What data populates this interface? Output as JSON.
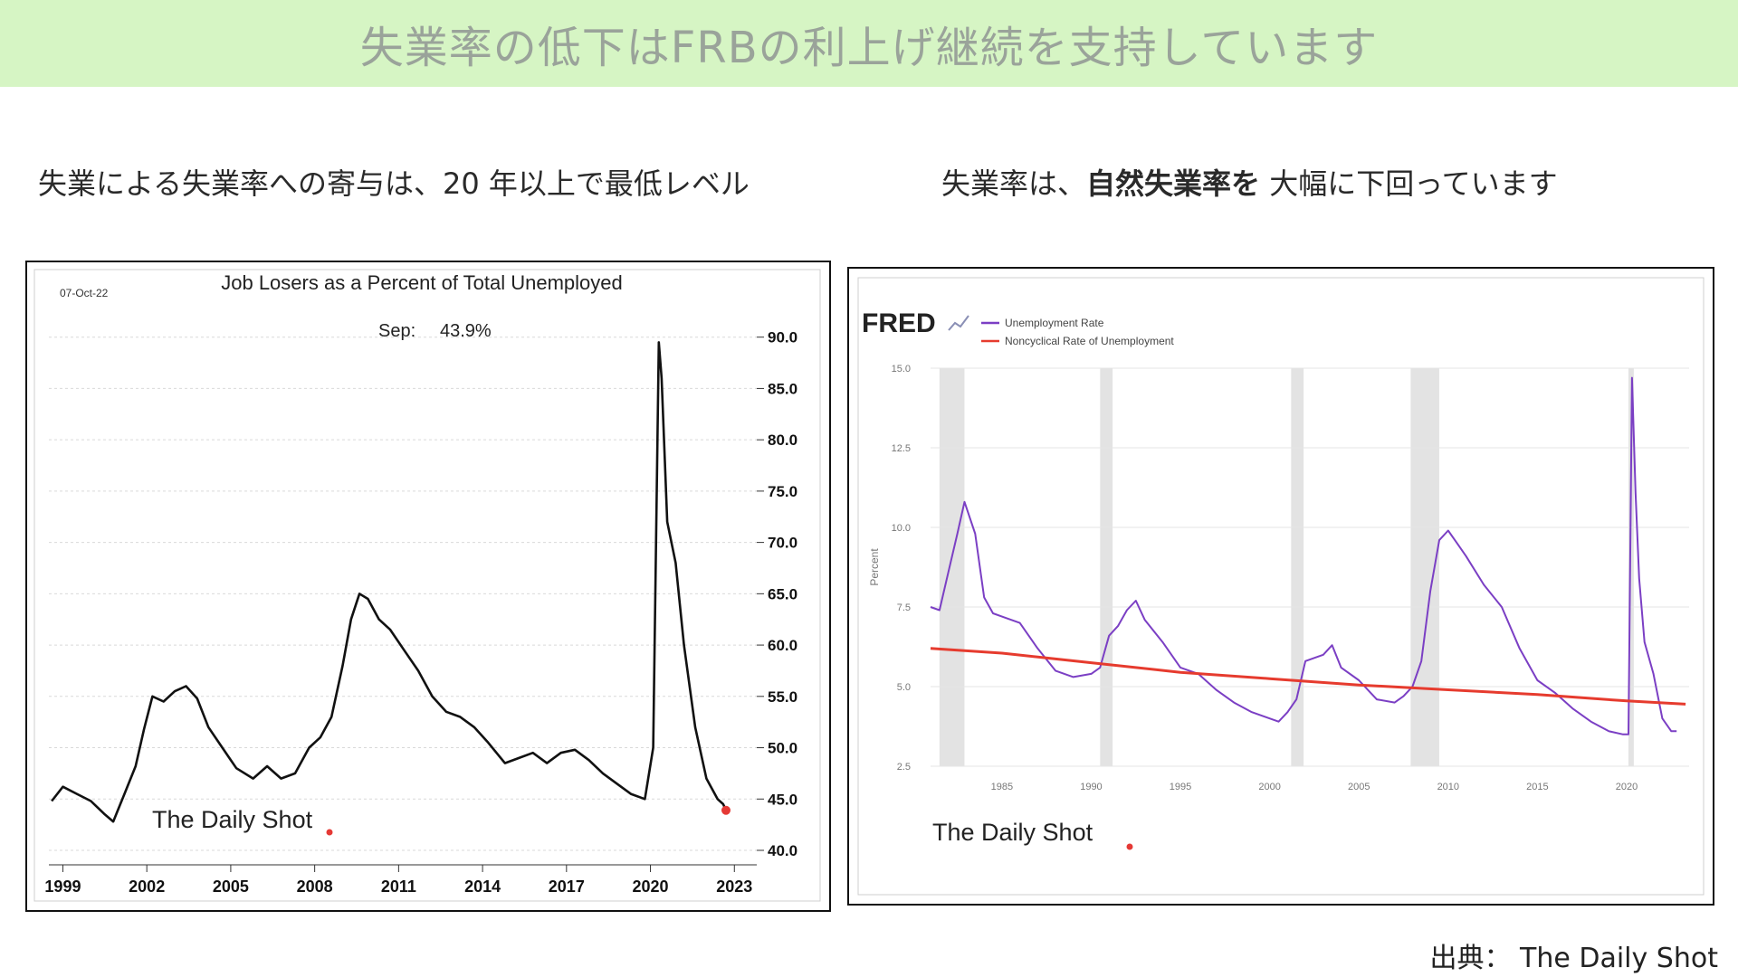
{
  "banner": {
    "title": "失業率の低下はFRBの利上げ継続を支持しています",
    "color": "#d6f5c4"
  },
  "left_subtitle": "失業による失業率への寄与は、20 年以上で最低レベル",
  "right_subtitle": {
    "part1": "失業率は、",
    "part2": "自然失業率を",
    "part3": " 大幅に下回っています"
  },
  "source": "出典： The Daily Shot",
  "chart_data": [
    {
      "type": "line",
      "date_label": "07-Oct-22",
      "title": "Job Losers as a Percent of Total Unemployed",
      "annotation": {
        "label": "Sep:",
        "value": "43.9%"
      },
      "watermark": "The Daily Shot",
      "xlim": [
        1998.5,
        2023.8
      ],
      "ylim": [
        40,
        92
      ],
      "xticks": [
        1999,
        2002,
        2005,
        2008,
        2011,
        2014,
        2017,
        2020,
        2023
      ],
      "xtick_labels": [
        "1999",
        "2002",
        "2005",
        "2008",
        "2011",
        "2014",
        "2017",
        "2020",
        "2023"
      ],
      "yticks": [
        40,
        45,
        50,
        55,
        60,
        65,
        70,
        75,
        80,
        85,
        90
      ],
      "ytick_labels": [
        "40.0",
        "45.0",
        "50.0",
        "55.0",
        "60.0",
        "65.0",
        "70.0",
        "75.0",
        "80.0",
        "85.0",
        "90.0"
      ],
      "y_axis_side": "right",
      "grid": true,
      "last_point": {
        "x": 2022.7,
        "y": 43.9,
        "color": "#e53935"
      },
      "series": [
        {
          "color": "#111111",
          "x": [
            1998.6,
            1999.0,
            1999.5,
            2000.0,
            2000.5,
            2000.8,
            2001.2,
            2001.6,
            2001.9,
            2002.2,
            2002.6,
            2003.0,
            2003.4,
            2003.8,
            2004.2,
            2004.7,
            2005.2,
            2005.8,
            2006.3,
            2006.8,
            2007.3,
            2007.8,
            2008.2,
            2008.6,
            2009.0,
            2009.3,
            2009.6,
            2009.9,
            2010.3,
            2010.7,
            2011.2,
            2011.7,
            2012.2,
            2012.7,
            2013.2,
            2013.7,
            2014.2,
            2014.8,
            2015.3,
            2015.8,
            2016.3,
            2016.8,
            2017.3,
            2017.8,
            2018.3,
            2018.8,
            2019.3,
            2019.8,
            2020.1,
            2020.3,
            2020.4,
            2020.6,
            2020.9,
            2021.2,
            2021.6,
            2022.0,
            2022.4,
            2022.6,
            2022.7
          ],
          "y": [
            44.8,
            46.2,
            45.5,
            44.8,
            43.5,
            42.8,
            45.5,
            48.2,
            51.8,
            55.0,
            54.5,
            55.5,
            56.0,
            54.8,
            52.0,
            50.0,
            48.0,
            47.0,
            48.2,
            47.0,
            47.5,
            50.0,
            51.0,
            53.0,
            58.0,
            62.5,
            65.0,
            64.5,
            62.5,
            61.5,
            59.5,
            57.5,
            55.0,
            53.5,
            53.0,
            52.0,
            50.5,
            48.5,
            49.0,
            49.5,
            48.5,
            49.5,
            49.8,
            48.8,
            47.5,
            46.5,
            45.5,
            45.0,
            50.0,
            89.5,
            86.0,
            72.0,
            68.0,
            60.0,
            52.0,
            47.0,
            45.0,
            44.5,
            43.9
          ]
        }
      ]
    },
    {
      "type": "line",
      "logo": "FRED",
      "ylabel": "Percent",
      "watermark": "The Daily Shot",
      "xlim": [
        1981.0,
        2023.5
      ],
      "ylim": [
        2.5,
        15.0
      ],
      "xticks": [
        1985,
        1990,
        1995,
        2000,
        2005,
        2010,
        2015,
        2020
      ],
      "xtick_labels": [
        "1985",
        "1990",
        "1995",
        "2000",
        "2005",
        "2010",
        "2015",
        "2020"
      ],
      "yticks": [
        2.5,
        5.0,
        7.5,
        10.0,
        12.5,
        15.0
      ],
      "ytick_labels": [
        "2.5",
        "5.0",
        "7.5",
        "10.0",
        "12.5",
        "15.0"
      ],
      "legend_position": "top-left",
      "grid": true,
      "recessions": [
        [
          1981.5,
          1982.9
        ],
        [
          1990.5,
          1991.2
        ],
        [
          2001.2,
          2001.9
        ],
        [
          2007.9,
          2009.5
        ],
        [
          2020.1,
          2020.4
        ]
      ],
      "series": [
        {
          "name": "Unemployment Rate",
          "color": "#7b3fc4",
          "x": [
            1981.0,
            1981.5,
            1982.0,
            1982.5,
            1982.9,
            1983.5,
            1984.0,
            1984.5,
            1985.0,
            1986.0,
            1987.0,
            1988.0,
            1989.0,
            1990.0,
            1990.5,
            1991.0,
            1991.5,
            1992.0,
            1992.5,
            1993.0,
            1994.0,
            1995.0,
            1996.0,
            1997.0,
            1998.0,
            1999.0,
            2000.0,
            2000.5,
            2001.0,
            2001.5,
            2002.0,
            2002.5,
            2003.0,
            2003.5,
            2004.0,
            2005.0,
            2006.0,
            2007.0,
            2007.5,
            2008.0,
            2008.5,
            2009.0,
            2009.5,
            2010.0,
            2010.5,
            2011.0,
            2012.0,
            2013.0,
            2014.0,
            2015.0,
            2016.0,
            2017.0,
            2018.0,
            2019.0,
            2019.8,
            2020.1,
            2020.3,
            2020.5,
            2020.7,
            2021.0,
            2021.5,
            2022.0,
            2022.5,
            2022.8
          ],
          "y": [
            7.5,
            7.4,
            8.6,
            9.8,
            10.8,
            9.8,
            7.8,
            7.3,
            7.2,
            7.0,
            6.2,
            5.5,
            5.3,
            5.4,
            5.6,
            6.6,
            6.9,
            7.4,
            7.7,
            7.1,
            6.4,
            5.6,
            5.4,
            4.9,
            4.5,
            4.2,
            4.0,
            3.9,
            4.2,
            4.6,
            5.8,
            5.9,
            6.0,
            6.3,
            5.6,
            5.2,
            4.6,
            4.5,
            4.7,
            5.0,
            5.8,
            8.0,
            9.6,
            9.9,
            9.5,
            9.1,
            8.2,
            7.5,
            6.2,
            5.2,
            4.8,
            4.3,
            3.9,
            3.6,
            3.5,
            3.5,
            14.7,
            11.1,
            8.4,
            6.4,
            5.4,
            4.0,
            3.6,
            3.6
          ]
        },
        {
          "name": "Noncyclical Rate of Unemployment",
          "color": "#e63b2e",
          "x": [
            1981.0,
            1985.0,
            1990.0,
            1995.0,
            2000.0,
            2005.0,
            2010.0,
            2015.0,
            2020.0,
            2023.3
          ],
          "y": [
            6.2,
            6.05,
            5.75,
            5.45,
            5.25,
            5.05,
            4.9,
            4.75,
            4.55,
            4.45
          ]
        }
      ]
    }
  ]
}
